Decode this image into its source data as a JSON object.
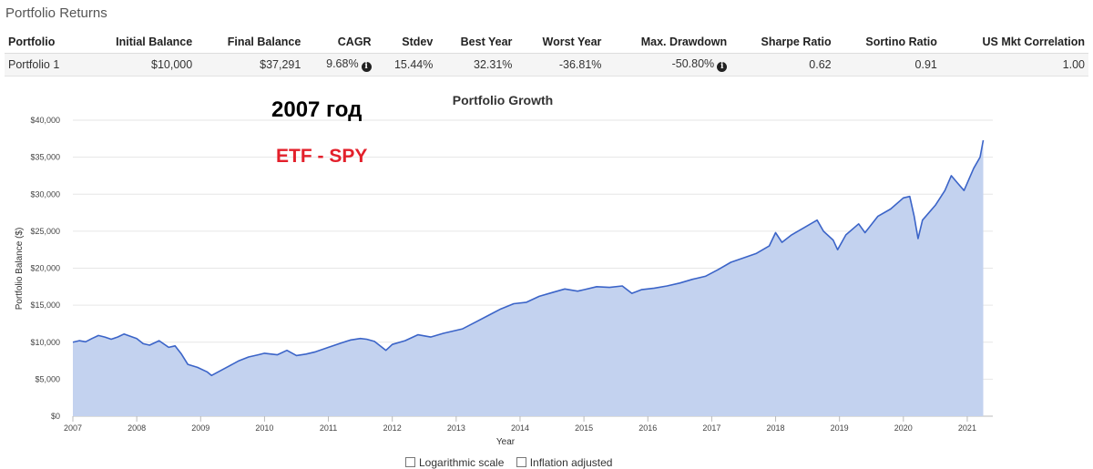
{
  "section_title": "Portfolio Returns",
  "table": {
    "headers": [
      "Portfolio",
      "Initial Balance",
      "Final Balance",
      "CAGR",
      "Stdev",
      "Best Year",
      "Worst Year",
      "Max. Drawdown",
      "Sharpe Ratio",
      "Sortino Ratio",
      "US Mkt Correlation"
    ],
    "row": {
      "portfolio": "Portfolio 1",
      "initial": "$10,000",
      "final": "$37,291",
      "cagr": "9.68%",
      "stdev": "15.44%",
      "best": "32.31%",
      "worst": "-36.81%",
      "drawdown": "-50.80%",
      "sharpe": "0.62",
      "sortino": "0.91",
      "corr": "1.00"
    }
  },
  "overlay": {
    "year_text": "2007 год",
    "etf_text": "ETF - SPY",
    "etf_color": "#e3202b"
  },
  "options": {
    "log_label": "Logarithmic scale",
    "inflation_label": "Inflation adjusted"
  },
  "chart_data": {
    "type": "area",
    "title": "Portfolio Growth",
    "xlabel": "Year",
    "ylabel": "Portfolio Balance ($)",
    "ylim": [
      0,
      40000
    ],
    "y_ticks": [
      "$0",
      "$5,000",
      "$10,000",
      "$15,000",
      "$20,000",
      "$25,000",
      "$30,000",
      "$35,000",
      "$40,000"
    ],
    "x_ticks": [
      "2007",
      "2008",
      "2009",
      "2010",
      "2011",
      "2012",
      "2013",
      "2014",
      "2015",
      "2016",
      "2017",
      "2018",
      "2019",
      "2020",
      "2021"
    ],
    "grid": "horizontal",
    "fill_color": "#c3d2ef",
    "line_color": "#3b64c8",
    "series": [
      {
        "x": [
          2007.0,
          2007.1,
          2007.2,
          2007.3,
          2007.4,
          2007.5,
          2007.6,
          2007.7,
          2007.8,
          2007.9,
          2008.0,
          2008.1,
          2008.2,
          2008.35,
          2008.5,
          2008.6,
          2008.7,
          2008.8,
          2008.95,
          2009.1,
          2009.17,
          2009.3,
          2009.45,
          2009.6,
          2009.75,
          2009.9,
          2010.0,
          2010.2,
          2010.35,
          2010.5,
          2010.65,
          2010.8,
          2011.0,
          2011.2,
          2011.35,
          2011.5,
          2011.6,
          2011.72,
          2011.9,
          2012.0,
          2012.2,
          2012.4,
          2012.6,
          2012.8,
          2012.9,
          2013.1,
          2013.3,
          2013.5,
          2013.7,
          2013.9,
          2014.1,
          2014.3,
          2014.5,
          2014.7,
          2014.9,
          2015.0,
          2015.2,
          2015.4,
          2015.6,
          2015.75,
          2015.9,
          2016.1,
          2016.3,
          2016.5,
          2016.7,
          2016.9,
          2017.1,
          2017.3,
          2017.5,
          2017.7,
          2017.9,
          2018.0,
          2018.1,
          2018.25,
          2018.45,
          2018.65,
          2018.75,
          2018.9,
          2018.97,
          2019.1,
          2019.3,
          2019.4,
          2019.6,
          2019.8,
          2020.0,
          2020.1,
          2020.17,
          2020.23,
          2020.3,
          2020.5,
          2020.65,
          2020.75,
          2020.85,
          2020.95,
          2021.1,
          2021.2,
          2021.25
        ],
        "y": [
          10000,
          10200,
          10050,
          10500,
          10900,
          10700,
          10400,
          10700,
          11100,
          10800,
          10500,
          9800,
          9600,
          10200,
          9300,
          9500,
          8400,
          7000,
          6600,
          6000,
          5500,
          6100,
          6800,
          7500,
          8000,
          8300,
          8500,
          8300,
          8900,
          8200,
          8400,
          8700,
          9300,
          9900,
          10300,
          10500,
          10400,
          10100,
          8900,
          9700,
          10200,
          11000,
          10700,
          11200,
          11400,
          11800,
          12700,
          13600,
          14500,
          15200,
          15400,
          16200,
          16700,
          17200,
          16900,
          17100,
          17500,
          17400,
          17600,
          16600,
          17100,
          17300,
          17600,
          18000,
          18500,
          18900,
          19800,
          20800,
          21400,
          22000,
          23000,
          24800,
          23500,
          24500,
          25500,
          26500,
          25000,
          23800,
          22500,
          24500,
          26000,
          24800,
          27000,
          28000,
          29500,
          29700,
          27000,
          24000,
          26500,
          28500,
          30500,
          32500,
          31500,
          30500,
          33500,
          35000,
          37291
        ]
      }
    ]
  }
}
